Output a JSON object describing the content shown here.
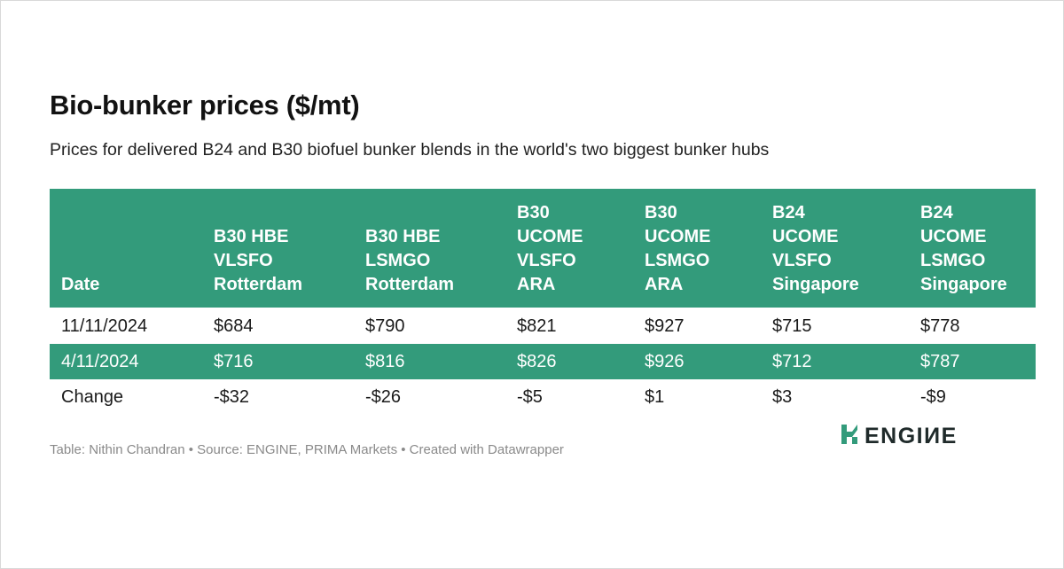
{
  "title": "Bio-bunker prices ($/mt)",
  "subtitle": "Prices for delivered B24 and B30 biofuel bunker blends in the world's two biggest bunker hubs",
  "colors": {
    "header_bg": "#339b7b",
    "header_text": "#ffffff",
    "body_text": "#1a1a1a",
    "footer_text": "#8a8a8a"
  },
  "table": {
    "headers": [
      "Date",
      "B30 HBE\nVLSFO\nRotterdam",
      "B30 HBE\nLSMGO\nRotterdam",
      "B30\nUCOME\nVLSFO\nARA",
      "B30\nUCOME\nLSMGO\nARA",
      "B24\nUCOME\nVLSFO\nSingapore",
      "B24\nUCOME\nLSMGO\nSingapore"
    ],
    "rows": [
      [
        "11/11/2024",
        "$684",
        "$790",
        "$821",
        "$927",
        "$715",
        "$778"
      ],
      [
        "4/11/2024",
        "$716",
        "$816",
        "$826",
        "$926",
        "$712",
        "$787"
      ],
      [
        "Change",
        "-$32",
        "-$26",
        "-$5",
        "$1",
        "$3",
        "-$9"
      ]
    ]
  },
  "chart_data": {
    "type": "table",
    "title": "Bio-bunker prices ($/mt)",
    "subtitle": "Prices for delivered B24 and B30 biofuel bunker blends in the world's two biggest bunker hubs",
    "columns": [
      "Date",
      "B30 HBE VLSFO Rotterdam",
      "B30 HBE LSMGO Rotterdam",
      "B30 UCOME VLSFO ARA",
      "B30 UCOME LSMGO ARA",
      "B24 UCOME VLSFO Singapore",
      "B24 UCOME LSMGO Singapore"
    ],
    "rows": [
      [
        "11/11/2024",
        684,
        790,
        821,
        927,
        715,
        778
      ],
      [
        "4/11/2024",
        716,
        816,
        826,
        926,
        712,
        787
      ],
      [
        "Change",
        -32,
        -26,
        -5,
        1,
        3,
        -9
      ]
    ]
  },
  "footer": "Table: Nithin Chandran • Source: ENGINE, PRIMA Markets • Created with Datawrapper",
  "logo": {
    "text": "ENGIИE",
    "icon": "engine-logo-mark"
  }
}
